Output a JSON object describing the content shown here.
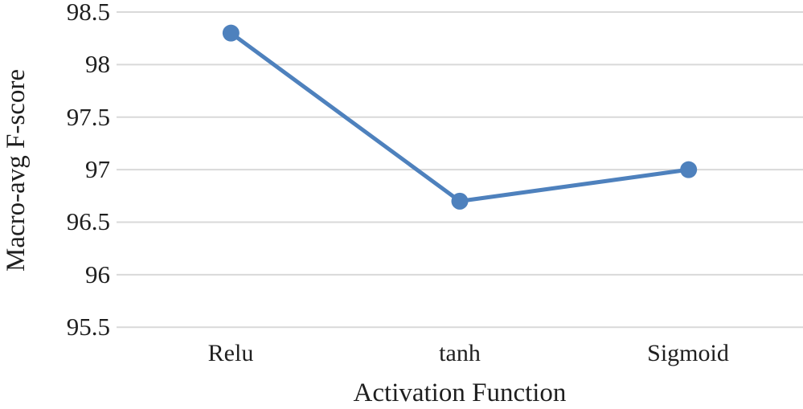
{
  "chart_data": {
    "type": "line",
    "title": "",
    "xlabel": "Activation Function",
    "ylabel": "Macro-avg F-score",
    "categories": [
      "Relu",
      "tanh",
      "Sigmoid"
    ],
    "series": [
      {
        "name": "Macro-avg F-score",
        "values": [
          98.3,
          96.7,
          97.0
        ],
        "color": "#4E81BD",
        "marker": "circle"
      }
    ],
    "ylim": [
      95.5,
      98.5
    ],
    "ytick_step": 0.5,
    "ytick_labels": [
      "98.5",
      "98",
      "97.5",
      "97",
      "96.5",
      "96",
      "95.5"
    ],
    "grid": "horizontal",
    "grid_color": "#D9D9D9",
    "legend": "none",
    "text_color": "#1F1F1F"
  }
}
